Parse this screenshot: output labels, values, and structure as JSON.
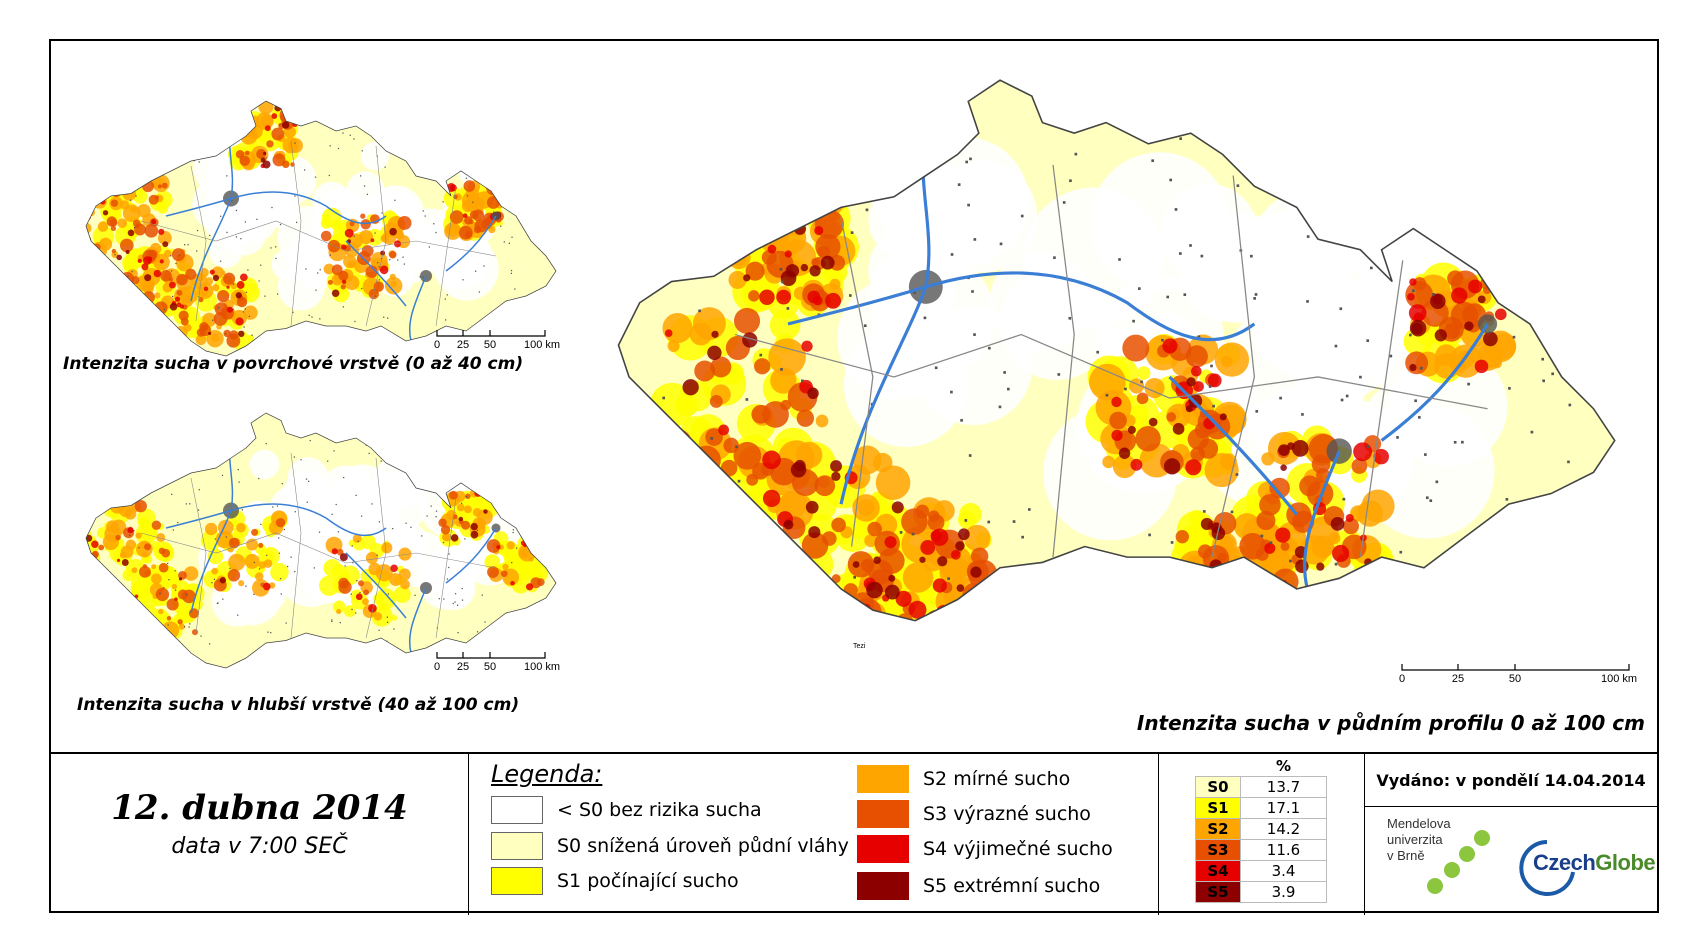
{
  "colors": {
    "none": "#ffffff",
    "s0": "#ffffc0",
    "s1": "#ffff00",
    "s2": "#ffa500",
    "s3": "#e65000",
    "s4": "#e60000",
    "s5": "#8c0000",
    "rivers": "#3a7fd5",
    "urban": "#555555",
    "borders": "#888888"
  },
  "maps": {
    "surface": {
      "title": "Intenzita sucha v povrchové vrstvě (0 až 40 cm)"
    },
    "deep": {
      "title": "Intenzita sucha v hlubší vrstvě (40 až 100 cm)"
    },
    "profile": {
      "title": "Intenzita sucha v půdním profilu 0 až 100 cm"
    }
  },
  "scale": {
    "labels": [
      "0",
      "25",
      "50",
      "100 km"
    ]
  },
  "main_map_label": "Tezi",
  "date": {
    "title": "12. dubna 2014",
    "time": "data v 7:00 SEČ"
  },
  "legend": {
    "title": "Legenda:",
    "items": [
      {
        "label": "< S0 bez rizika sucha",
        "color": "#ffffff"
      },
      {
        "label": "S0 snížená úroveň půdní vláhy",
        "color": "#ffffc0"
      },
      {
        "label": "S1 počínající sucho",
        "color": "#ffff00"
      },
      {
        "label": "S2 mírné sucho",
        "color": "#ffa500"
      },
      {
        "label": "S3 výrazné sucho",
        "color": "#e65000"
      },
      {
        "label": "S4 výjimečné sucho",
        "color": "#e60000"
      },
      {
        "label": "S5 extrémní sucho",
        "color": "#8c0000"
      }
    ]
  },
  "stats": {
    "header": "%",
    "rows": [
      {
        "code": "S0",
        "value": "13.7",
        "bg": "#ffffc0",
        "fg": "#000000"
      },
      {
        "code": "S1",
        "value": "17.1",
        "bg": "#ffff00",
        "fg": "#000000"
      },
      {
        "code": "S2",
        "value": "14.2",
        "bg": "#ffa500",
        "fg": "#000000"
      },
      {
        "code": "S3",
        "value": "11.6",
        "bg": "#e65000",
        "fg": "#000000"
      },
      {
        "code": "S4",
        "value": "3.4",
        "bg": "#e60000",
        "fg": "#000000"
      },
      {
        "code": "S5",
        "value": "3.9",
        "bg": "#8c0000",
        "fg": "#000000"
      }
    ]
  },
  "issued": "Vydáno: v pondělí 14.04.2014",
  "logos": {
    "mendel": [
      "Mendelova",
      "univerzita",
      "v Brně"
    ],
    "czechglobe": "CzechGlobe"
  }
}
